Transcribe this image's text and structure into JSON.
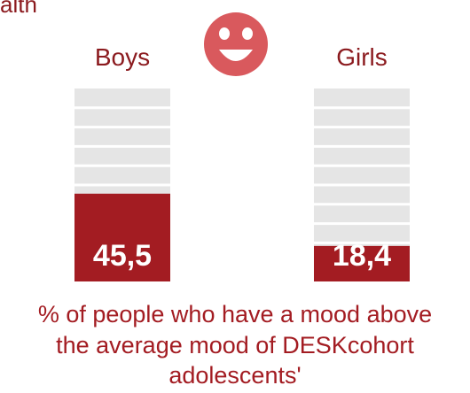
{
  "heading_fragment": "alth",
  "caption": {
    "line1": "% of people who have a mood above",
    "line2": "the average mood of DESKcohort",
    "line3": "adolescents'"
  },
  "icon": "smiley-face-icon",
  "colors": {
    "accent": "#a31c22",
    "bar_fill": "#a31c22",
    "bar_background": "#e5e5e5",
    "smiley": "#d9595d"
  },
  "chart_data": {
    "type": "bar",
    "categories": [
      "Boys",
      "Girls"
    ],
    "values": [
      45.5,
      18.4
    ],
    "value_labels": [
      "45,5",
      "18,4"
    ],
    "ylim": [
      0,
      100
    ],
    "title": "",
    "xlabel": "",
    "ylabel": ""
  }
}
